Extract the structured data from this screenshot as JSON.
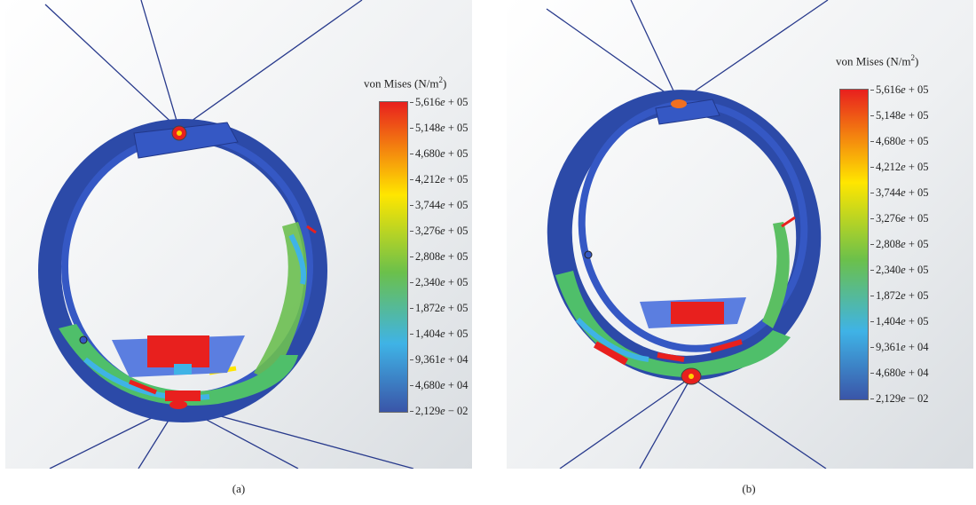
{
  "legend_title_prefix": "von Mises (N/m",
  "legend_title_exp": "2",
  "legend_title_suffix": ")",
  "colors": {
    "min": "#3a55a8",
    "mid_low": "#3fb3e6",
    "mid": "#6bc04b",
    "mid_high": "#ffe600",
    "max": "#e8201e"
  },
  "panels": [
    {
      "caption": "(a)",
      "ticks": [
        {
          "m": "5,616",
          "e": "05",
          "op": "+"
        },
        {
          "m": "5,148",
          "e": "05",
          "op": "+"
        },
        {
          "m": "4,680",
          "e": "05",
          "op": "+"
        },
        {
          "m": "4,212",
          "e": "05",
          "op": "+"
        },
        {
          "m": "3,744",
          "e": "05",
          "op": "+"
        },
        {
          "m": "3,276",
          "e": "05",
          "op": "+"
        },
        {
          "m": "2,808",
          "e": "05",
          "op": "+"
        },
        {
          "m": "2,340",
          "e": "05",
          "op": "+"
        },
        {
          "m": "1,872",
          "e": "05",
          "op": "+"
        },
        {
          "m": "1,404",
          "e": "05",
          "op": "+"
        },
        {
          "m": "9,361",
          "e": "04",
          "op": "+"
        },
        {
          "m": "4,680",
          "e": "04",
          "op": "+"
        },
        {
          "m": "2,129",
          "e": "02",
          "op": "−"
        }
      ]
    },
    {
      "caption": "(b)",
      "ticks": [
        {
          "m": "5,616",
          "e": "05",
          "op": "+"
        },
        {
          "m": "5,148",
          "e": "05",
          "op": "+"
        },
        {
          "m": "4,680",
          "e": "05",
          "op": "+"
        },
        {
          "m": "4,212",
          "e": "05",
          "op": "+"
        },
        {
          "m": "3,744",
          "e": "05",
          "op": "+"
        },
        {
          "m": "3,276",
          "e": "05",
          "op": "+"
        },
        {
          "m": "2,808",
          "e": "05",
          "op": "+"
        },
        {
          "m": "2,340",
          "e": "05",
          "op": "+"
        },
        {
          "m": "1,872",
          "e": "05",
          "op": "+"
        },
        {
          "m": "1,404",
          "e": "05",
          "op": "+"
        },
        {
          "m": "9,361",
          "e": "04",
          "op": "+"
        },
        {
          "m": "4,680",
          "e": "04",
          "op": "+"
        },
        {
          "m": "2,129",
          "e": "02",
          "op": "−"
        }
      ]
    }
  ]
}
